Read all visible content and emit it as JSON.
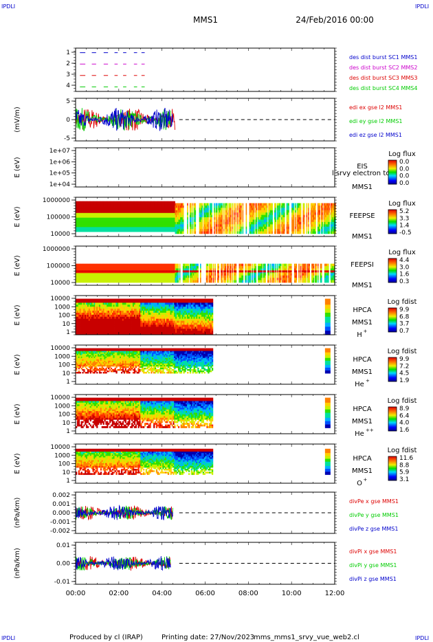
{
  "corner_tag": "IPDLI",
  "header": {
    "spacecraft": "MMS1",
    "date": "24/Feb/2016 00:00"
  },
  "footer": {
    "produced": "Produced by cl (IRAP)",
    "printing": "Printing date: 27/Nov/2023",
    "script": "mms_mms1_srvy_vue_web2.cl"
  },
  "time_axis": {
    "ticks": [
      "00:00",
      "02:00",
      "04:00",
      "06:00",
      "08:00",
      "10:00",
      "12:00"
    ]
  },
  "chart_data": [
    {
      "id": "burst",
      "type": "line",
      "ytick_labels": [
        "1",
        "2",
        "3",
        "4"
      ],
      "ylim": [
        0.6,
        4.4
      ],
      "legend": [
        {
          "text": "des dist burst SC1 MMS1",
          "color": "#0000cc",
          "y": 4
        },
        {
          "text": "des dist burst SC2 MMS2",
          "color": "#cc00cc",
          "y": 3
        },
        {
          "text": "des dist burst SC3 MMS3",
          "color": "#dd0000",
          "y": 2
        },
        {
          "text": "des dist burst SC4 MMS4",
          "color": "#00cc00",
          "y": 1
        }
      ],
      "segments": [
        [
          0.2,
          0.45
        ],
        [
          0.75,
          0.95
        ],
        [
          1.3,
          1.5
        ],
        [
          1.8,
          1.95
        ],
        [
          2.2,
          2.35
        ],
        [
          2.7,
          2.85
        ],
        [
          3.05,
          3.2
        ]
      ]
    },
    {
      "id": "efield",
      "type": "line",
      "ylabel": "(mV/m)",
      "ytick_labels": [
        "5",
        "0",
        "-5"
      ],
      "ylim": [
        -8,
        8
      ],
      "series": [
        {
          "name": "edi ex gse l2 MMS1",
          "color": "#dd0000",
          "range_h": [
            0,
            4.6
          ]
        },
        {
          "name": "edi ey gse l2 MMS1",
          "color": "#00cc00",
          "range_h": [
            0,
            4.4
          ]
        },
        {
          "name": "edi ez gse l2 MMS1",
          "color": "#0000cc",
          "range_h": [
            0,
            4.5
          ]
        }
      ]
    },
    {
      "id": "eis",
      "type": "heatmap",
      "ylabel": "E (eV)",
      "ytick_labels": [
        "1e+07",
        "1e+06",
        "1e+05",
        "1e+04"
      ],
      "labels": [
        "EIS",
        "MMS1"
      ],
      "overflow_text": "l srvy electron to",
      "colorbar": {
        "title": "Log flux",
        "ticks": [
          "0.0",
          "0.0",
          "0.0",
          "0.0"
        ]
      }
    },
    {
      "id": "feepse",
      "type": "heatmap",
      "ylabel": "E (eV)",
      "ytick_labels": [
        "1000000",
        "100000",
        "10000"
      ],
      "labels": [
        "FEEPSE",
        "MMS1"
      ],
      "colorbar": {
        "title": "Log flux",
        "ticks": [
          "5.2",
          "3.3",
          "1.4",
          "-0.5"
        ]
      }
    },
    {
      "id": "feepsi",
      "type": "heatmap",
      "ylabel": "E (eV)",
      "ytick_labels": [
        "1000000",
        "100000",
        "10000"
      ],
      "labels": [
        "FEEPSI",
        "MMS1"
      ],
      "colorbar": {
        "title": "Log flux",
        "ticks": [
          "4.4",
          "3.0",
          "1.6",
          "0.3"
        ]
      }
    },
    {
      "id": "hpca_h",
      "type": "heatmap",
      "ylabel": "E (eV)",
      "ytick_labels": [
        "10000",
        "1000",
        "100",
        "10",
        "1"
      ],
      "labels": [
        "HPCA",
        "MMS1"
      ],
      "species": "H",
      "charge": "+",
      "colorbar": {
        "title": "Log fdist",
        "ticks": [
          "9.9",
          "6.8",
          "3.7",
          "0.7"
        ]
      }
    },
    {
      "id": "hpca_he",
      "type": "heatmap",
      "ylabel": "E (eV)",
      "ytick_labels": [
        "10000",
        "1000",
        "100",
        "10",
        "1"
      ],
      "labels": [
        "HPCA",
        "MMS1"
      ],
      "species": "He",
      "charge": "+",
      "colorbar": {
        "title": "Log fdist",
        "ticks": [
          "9.9",
          "7.2",
          "4.5",
          "1.9"
        ]
      }
    },
    {
      "id": "hpca_hepp",
      "type": "heatmap",
      "ylabel": "E (eV)",
      "ytick_labels": [
        "10000",
        "1000",
        "100",
        "10",
        "1"
      ],
      "labels": [
        "HPCA",
        "MMS1"
      ],
      "species": "He",
      "charge": "++",
      "colorbar": {
        "title": "Log fdist",
        "ticks": [
          "8.9",
          "6.4",
          "4.0",
          "1.6"
        ]
      }
    },
    {
      "id": "hpca_o",
      "type": "heatmap",
      "ylabel": "E (eV)",
      "ytick_labels": [
        "10000",
        "1000",
        "100",
        "10",
        "1"
      ],
      "labels": [
        "HPCA",
        "MMS1"
      ],
      "species": "O",
      "charge": "+",
      "colorbar": {
        "title": "Log fdist",
        "ticks": [
          "11.6",
          "8.8",
          "5.9",
          "3.1"
        ]
      }
    },
    {
      "id": "divpe",
      "type": "line",
      "ylabel": "(nPa/km)",
      "ytick_labels": [
        "0.002",
        "0.001",
        "0.000",
        "-0.001",
        "-0.002"
      ],
      "ylim": [
        -0.0025,
        0.0025
      ],
      "series": [
        {
          "name": "divPe x gse MMS1",
          "color": "#dd0000",
          "range_h": [
            0,
            4.5
          ]
        },
        {
          "name": "divPe y gse MMS1",
          "color": "#00cc00",
          "range_h": [
            0,
            4.5
          ]
        },
        {
          "name": "divPe z gse MMS1",
          "color": "#0000cc",
          "range_h": [
            0,
            4.5
          ]
        }
      ]
    },
    {
      "id": "divpi",
      "type": "line",
      "ylabel": "(nPa/km)",
      "ytick_labels": [
        "0.01",
        "0.00",
        "-0.01"
      ],
      "ylim": [
        -0.015,
        0.015
      ],
      "series": [
        {
          "name": "divPi x gse MMS1",
          "color": "#dd0000",
          "range_h": [
            0,
            4.4
          ]
        },
        {
          "name": "divPi y gse MMS1",
          "color": "#00cc00",
          "range_h": [
            0,
            4.4
          ]
        },
        {
          "name": "divPi z gse MMS1",
          "color": "#0000cc",
          "range_h": [
            0,
            4.4
          ]
        }
      ]
    }
  ]
}
